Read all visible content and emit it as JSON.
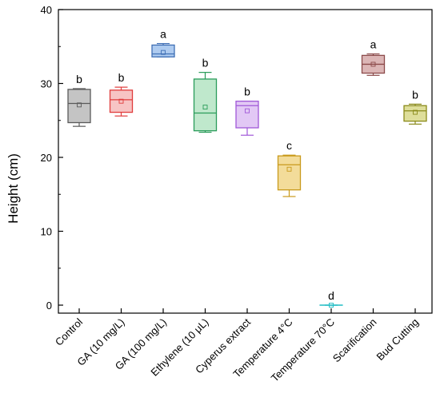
{
  "chart_data": {
    "type": "box",
    "title": "",
    "xlabel": "",
    "ylabel": "Height (cm)",
    "ylim": [
      0,
      40
    ],
    "yticks": [
      0,
      10,
      20,
      30,
      40
    ],
    "grid": false,
    "categories": [
      "Control",
      "GA (10 mg/L)",
      "GA (100 mg/L)",
      "Ethylene (10 μL)",
      "Cyperus extract",
      "Temperature 4°C",
      "Temperature 70°C",
      "Scarification",
      "Bud Cutting"
    ],
    "boxes": [
      {
        "category": "Control",
        "whisker_low": 24.2,
        "q1": 24.7,
        "median": 27.3,
        "q3": 29.2,
        "whisker_high": 29.3,
        "mean": 27.1,
        "letter": "b",
        "color": "#5a5a5a",
        "fill": "#c4c4c4"
      },
      {
        "category": "GA (10 mg/L)",
        "whisker_low": 25.6,
        "q1": 26.1,
        "median": 27.8,
        "q3": 29.1,
        "whisker_high": 29.5,
        "mean": 27.6,
        "letter": "b",
        "color": "#e03c3c",
        "fill": "#f7c4c4"
      },
      {
        "category": "GA (100 mg/L)",
        "whisker_low": 33.6,
        "q1": 33.6,
        "median": 34.0,
        "q3": 35.2,
        "whisker_high": 35.4,
        "mean": 34.2,
        "letter": "a",
        "color": "#3f6fb5",
        "fill": "#aecbf0"
      },
      {
        "category": "Ethylene (10 μL)",
        "whisker_low": 23.4,
        "q1": 23.6,
        "median": 26.0,
        "q3": 30.6,
        "whisker_high": 31.5,
        "mean": 26.8,
        "letter": "b",
        "color": "#2a9c5a",
        "fill": "#bfe8cc"
      },
      {
        "category": "Cyperus extract",
        "whisker_low": 23.0,
        "q1": 24.0,
        "median": 27.0,
        "q3": 27.6,
        "whisker_high": 27.6,
        "mean": 26.3,
        "letter": "b",
        "color": "#a058d8",
        "fill": "#e2c8f5"
      },
      {
        "category": "Temperature 4°C",
        "whisker_low": 14.7,
        "q1": 15.6,
        "median": 19.0,
        "q3": 20.2,
        "whisker_high": 20.3,
        "mean": 18.4,
        "letter": "c",
        "color": "#c99a1c",
        "fill": "#f3dc9a"
      },
      {
        "category": "Temperature 70°C",
        "whisker_low": 0.0,
        "q1": 0.0,
        "median": 0.0,
        "q3": 0.0,
        "whisker_high": 0.0,
        "mean": 0.0,
        "letter": "d",
        "color": "#1fbcc4",
        "fill": "#b0eef0"
      },
      {
        "category": "Scarification",
        "whisker_low": 31.1,
        "q1": 31.4,
        "median": 32.6,
        "q3": 33.8,
        "whisker_high": 34.0,
        "mean": 32.6,
        "letter": "a",
        "color": "#8c4a4a",
        "fill": "#dcb6b6"
      },
      {
        "category": "Bud Cutting",
        "whisker_low": 24.5,
        "q1": 24.9,
        "median": 26.3,
        "q3": 27.0,
        "whisker_high": 27.2,
        "mean": 26.1,
        "letter": "b",
        "color": "#8a8a1a",
        "fill": "#dede9a"
      }
    ]
  }
}
